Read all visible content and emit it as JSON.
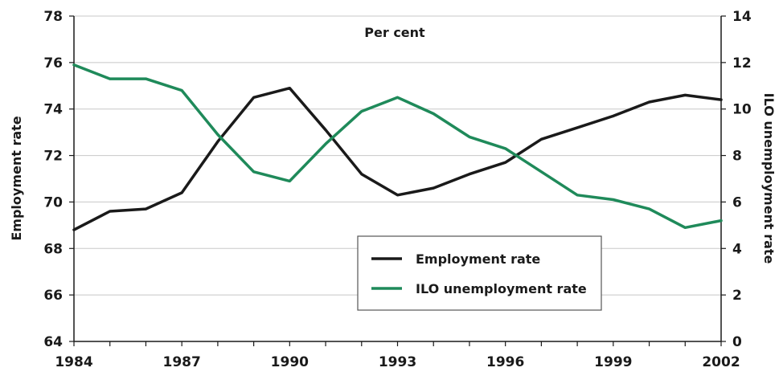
{
  "chart_data": {
    "type": "line",
    "annotation": "Per cent",
    "ylabel": "Employment rate",
    "y2label": "ILO unemployment rate",
    "x": [
      1984,
      1985,
      1986,
      1987,
      1988,
      1989,
      1990,
      1991,
      1992,
      1993,
      1994,
      1995,
      1996,
      1997,
      1998,
      1999,
      2000,
      2001,
      2002
    ],
    "x_ticks": [
      "1984",
      "1987",
      "1990",
      "1993",
      "1996",
      "1999",
      "2002"
    ],
    "xlim": [
      1984,
      2002
    ],
    "ylim": [
      64,
      78
    ],
    "y_ticks": [
      "64",
      "66",
      "68",
      "70",
      "72",
      "74",
      "76",
      "78"
    ],
    "y2lim": [
      0,
      14
    ],
    "y2_ticks": [
      "0",
      "2",
      "4",
      "6",
      "8",
      "10",
      "12",
      "14"
    ],
    "grid": "horizontal",
    "legend_position": "bottom-right",
    "series": [
      {
        "name": "Employment rate",
        "axis": "left",
        "color": "#1a1a1a",
        "values": [
          68.8,
          69.6,
          69.7,
          70.4,
          72.6,
          74.5,
          74.9,
          73.1,
          71.2,
          70.3,
          70.6,
          71.2,
          71.7,
          72.7,
          73.2,
          73.7,
          74.3,
          74.6,
          74.4
        ]
      },
      {
        "name": "ILO unemployment rate",
        "axis": "right",
        "color": "#1f8a5a",
        "values": [
          11.9,
          11.3,
          11.3,
          10.8,
          8.9,
          7.3,
          6.9,
          8.5,
          9.9,
          10.5,
          9.8,
          8.8,
          8.3,
          7.3,
          6.3,
          6.1,
          5.7,
          4.9,
          5.2
        ]
      }
    ]
  }
}
